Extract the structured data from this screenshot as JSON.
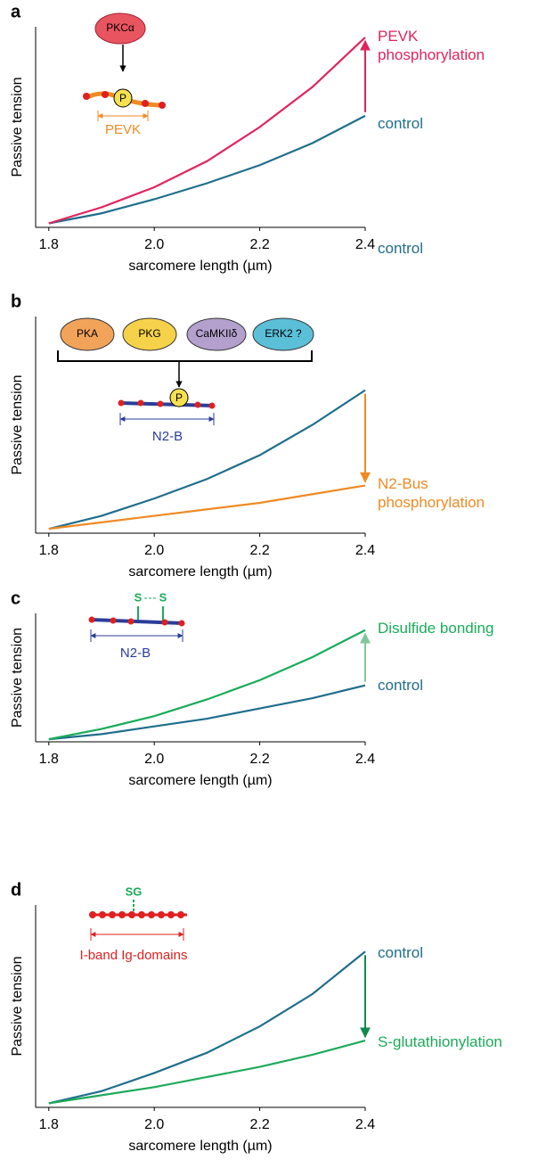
{
  "chart_data": [
    {
      "type": "line",
      "panel": "a",
      "xlabel": "sarcomere length (µm)",
      "ylabel": "Passive tension",
      "x": [
        1.8,
        1.9,
        2.0,
        2.1,
        2.2,
        2.3,
        2.4
      ],
      "xlim": [
        1.775,
        2.4
      ],
      "ylim": [
        0,
        1
      ],
      "xticks": [
        1.8,
        {
          "value": 2,
          "label": "2.0"
        },
        2.2,
        2.4
      ],
      "series": [
        {
          "name": "control",
          "color": "#1f6e8c",
          "values": [
            0.02,
            0.07,
            0.14,
            0.22,
            0.31,
            0.42,
            0.556
          ]
        },
        {
          "name": "PEVK phosphorylation",
          "color": "#e0245e",
          "values": [
            0.02,
            0.1,
            0.2,
            0.33,
            0.5,
            0.7,
            0.947
          ]
        }
      ],
      "inset_labels": [
        "PKCα",
        "P",
        "PEVK"
      ]
    },
    {
      "type": "line",
      "panel": "b",
      "xlabel": "sarcomere length (µm)",
      "ylabel": "Passive tension",
      "x": [
        1.8,
        1.9,
        2.0,
        2.1,
        2.2,
        2.3,
        2.4
      ],
      "xlim": [
        1.775,
        2.4
      ],
      "ylim": [
        0,
        1
      ],
      "xticks": [
        1.8,
        {
          "value": 2,
          "label": "2.0"
        },
        2.2,
        2.4
      ],
      "series": [
        {
          "name": "control",
          "color": "#1f6e8c",
          "values": [
            0.02,
            0.08,
            0.16,
            0.25,
            0.36,
            0.5,
            0.66
          ]
        },
        {
          "name": "N2-Bus phosphorylation",
          "color": "#f08a24",
          "values": [
            0.02,
            0.05,
            0.08,
            0.11,
            0.14,
            0.18,
            0.22
          ]
        }
      ],
      "inset_labels": [
        "PKA",
        "PKG",
        "CaMKIIδ",
        "ERK2 ?",
        "P",
        "N2-B"
      ]
    },
    {
      "type": "line",
      "panel": "c",
      "xlabel": "sarcomere length (µm)",
      "ylabel": "Passive tension",
      "x": [
        1.8,
        1.9,
        2.0,
        2.1,
        2.2,
        2.3,
        2.4
      ],
      "xlim": [
        1.775,
        2.4
      ],
      "ylim": [
        0,
        1
      ],
      "xticks": [
        1.8,
        {
          "value": 2,
          "label": "2.0"
        },
        2.2,
        2.4
      ],
      "series": [
        {
          "name": "control",
          "color": "#1f6e8c",
          "values": [
            0.02,
            0.06,
            0.12,
            0.18,
            0.26,
            0.34,
            0.44
          ]
        },
        {
          "name": "Disulfide bonding",
          "color": "#1aab5a",
          "values": [
            0.02,
            0.1,
            0.2,
            0.33,
            0.48,
            0.66,
            0.87
          ]
        }
      ],
      "inset_labels": [
        "S",
        "S",
        "N2-B"
      ]
    },
    {
      "type": "line",
      "panel": "d",
      "xlabel": "sarcomere length (µm)",
      "ylabel": "Passive tension",
      "x": [
        1.8,
        1.9,
        2.0,
        2.1,
        2.2,
        2.3,
        2.4
      ],
      "xlim": [
        1.775,
        2.4
      ],
      "ylim": [
        0,
        1
      ],
      "xticks": [
        1.8,
        {
          "value": 2,
          "label": "2.0"
        },
        2.2,
        2.4
      ],
      "series": [
        {
          "name": "control",
          "color": "#1f6e8c",
          "values": [
            0.02,
            0.08,
            0.17,
            0.27,
            0.4,
            0.56,
            0.77
          ]
        },
        {
          "name": "S-glutathionylation",
          "color": "#1daa5a",
          "values": [
            0.02,
            0.06,
            0.1,
            0.15,
            0.2,
            0.26,
            0.33
          ]
        }
      ],
      "inset_labels": [
        "SG",
        "I-band Ig-domains"
      ]
    }
  ]
}
